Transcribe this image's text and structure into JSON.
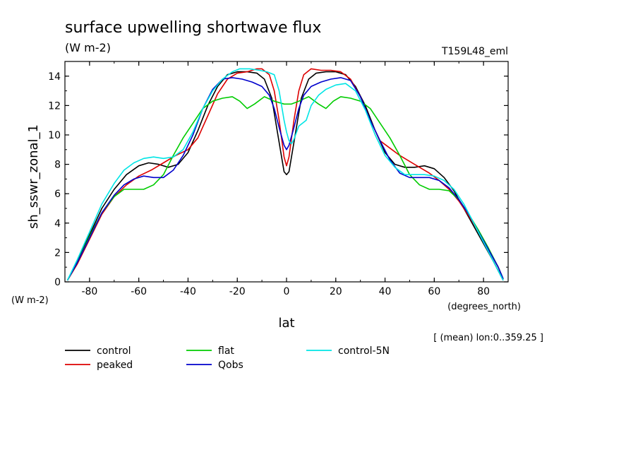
{
  "chart_data": {
    "type": "line",
    "title": "surface upwelling shortwave flux",
    "subtitle": "(W m-2)",
    "experiment_label": "T159L48_eml",
    "ylabel": "sh_sswr_zonal_1",
    "yunits": "(W m-2)",
    "xlabel": "lat",
    "xunits": "(degrees_north)",
    "note": "[ (mean) lon:0..359.25 ]",
    "xlim": [
      -90,
      90
    ],
    "ylim": [
      0,
      15
    ],
    "xticks": [
      -80,
      -60,
      -40,
      -20,
      0,
      20,
      40,
      60,
      80
    ],
    "yticks": [
      0,
      2,
      4,
      6,
      8,
      10,
      12,
      14
    ],
    "grid": false,
    "legend_position": "bottom",
    "series": [
      {
        "name": "control",
        "color": "#000000",
        "points": [
          [
            -89,
            0.1
          ],
          [
            -85,
            1.4
          ],
          [
            -80,
            3.2
          ],
          [
            -75,
            5.0
          ],
          [
            -70,
            6.3
          ],
          [
            -65,
            7.3
          ],
          [
            -60,
            7.9
          ],
          [
            -56,
            8.1
          ],
          [
            -52,
            8.0
          ],
          [
            -48,
            7.8
          ],
          [
            -44,
            8.0
          ],
          [
            -40,
            8.8
          ],
          [
            -36,
            10.3
          ],
          [
            -32,
            12.0
          ],
          [
            -28,
            13.3
          ],
          [
            -24,
            14.1
          ],
          [
            -20,
            14.3
          ],
          [
            -16,
            14.3
          ],
          [
            -12,
            14.2
          ],
          [
            -9,
            13.8
          ],
          [
            -6,
            12.5
          ],
          [
            -4,
            10.5
          ],
          [
            -2,
            8.5
          ],
          [
            -1,
            7.5
          ],
          [
            0,
            7.3
          ],
          [
            1,
            7.5
          ],
          [
            2,
            8.5
          ],
          [
            4,
            10.5
          ],
          [
            6,
            12.5
          ],
          [
            9,
            13.8
          ],
          [
            12,
            14.2
          ],
          [
            16,
            14.3
          ],
          [
            20,
            14.3
          ],
          [
            24,
            14.1
          ],
          [
            28,
            13.3
          ],
          [
            32,
            12.0
          ],
          [
            36,
            10.3
          ],
          [
            40,
            8.8
          ],
          [
            44,
            8.0
          ],
          [
            48,
            7.8
          ],
          [
            52,
            7.8
          ],
          [
            56,
            7.9
          ],
          [
            60,
            7.7
          ],
          [
            64,
            7.1
          ],
          [
            68,
            6.2
          ],
          [
            72,
            5.0
          ],
          [
            76,
            3.8
          ],
          [
            80,
            2.6
          ],
          [
            84,
            1.4
          ],
          [
            88,
            0.1
          ]
        ]
      },
      {
        "name": "peaked",
        "color": "#dd0000",
        "points": [
          [
            -89,
            0.1
          ],
          [
            -85,
            1.2
          ],
          [
            -80,
            2.9
          ],
          [
            -75,
            4.6
          ],
          [
            -70,
            5.8
          ],
          [
            -65,
            6.6
          ],
          [
            -60,
            7.2
          ],
          [
            -55,
            7.6
          ],
          [
            -50,
            8.1
          ],
          [
            -45,
            8.6
          ],
          [
            -40,
            9.0
          ],
          [
            -36,
            9.8
          ],
          [
            -32,
            11.3
          ],
          [
            -28,
            12.8
          ],
          [
            -24,
            13.8
          ],
          [
            -20,
            14.2
          ],
          [
            -16,
            14.3
          ],
          [
            -12,
            14.5
          ],
          [
            -10,
            14.5
          ],
          [
            -7,
            14.1
          ],
          [
            -5,
            13.0
          ],
          [
            -3,
            11.0
          ],
          [
            -1,
            8.5
          ],
          [
            0,
            7.9
          ],
          [
            1,
            8.5
          ],
          [
            3,
            11.0
          ],
          [
            5,
            13.0
          ],
          [
            7,
            14.1
          ],
          [
            10,
            14.5
          ],
          [
            14,
            14.4
          ],
          [
            18,
            14.4
          ],
          [
            22,
            14.3
          ],
          [
            26,
            13.8
          ],
          [
            30,
            12.6
          ],
          [
            34,
            11.0
          ],
          [
            38,
            9.6
          ],
          [
            42,
            9.1
          ],
          [
            46,
            8.6
          ],
          [
            50,
            8.2
          ],
          [
            54,
            7.8
          ],
          [
            58,
            7.4
          ],
          [
            62,
            6.9
          ],
          [
            66,
            6.3
          ],
          [
            70,
            5.5
          ],
          [
            74,
            4.5
          ],
          [
            78,
            3.4
          ],
          [
            82,
            2.2
          ],
          [
            86,
            1.0
          ],
          [
            88,
            0.2
          ]
        ]
      },
      {
        "name": "flat",
        "color": "#00cc00",
        "points": [
          [
            -89,
            0.1
          ],
          [
            -85,
            1.3
          ],
          [
            -80,
            3.1
          ],
          [
            -75,
            4.7
          ],
          [
            -70,
            5.8
          ],
          [
            -66,
            6.3
          ],
          [
            -62,
            6.3
          ],
          [
            -58,
            6.3
          ],
          [
            -54,
            6.6
          ],
          [
            -50,
            7.3
          ],
          [
            -46,
            8.6
          ],
          [
            -42,
            9.8
          ],
          [
            -38,
            10.8
          ],
          [
            -34,
            11.8
          ],
          [
            -30,
            12.3
          ],
          [
            -26,
            12.5
          ],
          [
            -22,
            12.6
          ],
          [
            -19,
            12.3
          ],
          [
            -16,
            11.8
          ],
          [
            -13,
            12.1
          ],
          [
            -9,
            12.6
          ],
          [
            -5,
            12.3
          ],
          [
            -1,
            12.1
          ],
          [
            2,
            12.1
          ],
          [
            5,
            12.3
          ],
          [
            9,
            12.6
          ],
          [
            13,
            12.1
          ],
          [
            16,
            11.8
          ],
          [
            19,
            12.3
          ],
          [
            22,
            12.6
          ],
          [
            26,
            12.5
          ],
          [
            30,
            12.3
          ],
          [
            34,
            11.8
          ],
          [
            38,
            10.8
          ],
          [
            42,
            9.8
          ],
          [
            46,
            8.6
          ],
          [
            50,
            7.3
          ],
          [
            54,
            6.6
          ],
          [
            58,
            6.3
          ],
          [
            62,
            6.3
          ],
          [
            66,
            6.2
          ],
          [
            70,
            5.6
          ],
          [
            74,
            4.6
          ],
          [
            78,
            3.5
          ],
          [
            82,
            2.3
          ],
          [
            86,
            1.0
          ],
          [
            88,
            0.2
          ]
        ]
      },
      {
        "name": "Qobs",
        "color": "#0000cc",
        "points": [
          [
            -89,
            0.1
          ],
          [
            -85,
            1.3
          ],
          [
            -80,
            3.0
          ],
          [
            -75,
            4.7
          ],
          [
            -70,
            5.9
          ],
          [
            -66,
            6.6
          ],
          [
            -62,
            7.0
          ],
          [
            -58,
            7.2
          ],
          [
            -54,
            7.1
          ],
          [
            -50,
            7.1
          ],
          [
            -46,
            7.6
          ],
          [
            -42,
            8.6
          ],
          [
            -38,
            10.0
          ],
          [
            -34,
            11.8
          ],
          [
            -30,
            13.1
          ],
          [
            -26,
            13.8
          ],
          [
            -22,
            13.9
          ],
          [
            -18,
            13.8
          ],
          [
            -14,
            13.6
          ],
          [
            -10,
            13.3
          ],
          [
            -7,
            12.7
          ],
          [
            -5,
            11.8
          ],
          [
            -3,
            10.5
          ],
          [
            -1,
            9.3
          ],
          [
            0,
            9.0
          ],
          [
            1,
            9.3
          ],
          [
            3,
            10.5
          ],
          [
            5,
            11.8
          ],
          [
            7,
            12.7
          ],
          [
            10,
            13.3
          ],
          [
            14,
            13.6
          ],
          [
            18,
            13.8
          ],
          [
            22,
            13.9
          ],
          [
            26,
            13.7
          ],
          [
            30,
            12.6
          ],
          [
            34,
            11.0
          ],
          [
            38,
            9.6
          ],
          [
            42,
            8.3
          ],
          [
            46,
            7.4
          ],
          [
            50,
            7.1
          ],
          [
            54,
            7.1
          ],
          [
            58,
            7.1
          ],
          [
            62,
            6.9
          ],
          [
            66,
            6.4
          ],
          [
            70,
            5.6
          ],
          [
            74,
            4.6
          ],
          [
            78,
            3.4
          ],
          [
            82,
            2.2
          ],
          [
            86,
            1.0
          ],
          [
            88,
            0.2
          ]
        ]
      },
      {
        "name": "control-5N",
        "color": "#00e5e5",
        "points": [
          [
            -89,
            0.1
          ],
          [
            -85,
            1.5
          ],
          [
            -80,
            3.4
          ],
          [
            -75,
            5.3
          ],
          [
            -70,
            6.7
          ],
          [
            -66,
            7.6
          ],
          [
            -62,
            8.1
          ],
          [
            -58,
            8.4
          ],
          [
            -54,
            8.5
          ],
          [
            -50,
            8.4
          ],
          [
            -46,
            8.5
          ],
          [
            -42,
            9.0
          ],
          [
            -38,
            10.2
          ],
          [
            -34,
            11.8
          ],
          [
            -30,
            13.0
          ],
          [
            -26,
            13.8
          ],
          [
            -22,
            14.3
          ],
          [
            -19,
            14.5
          ],
          [
            -15,
            14.5
          ],
          [
            -11,
            14.4
          ],
          [
            -8,
            14.3
          ],
          [
            -5,
            14.1
          ],
          [
            -3,
            13.0
          ],
          [
            -1,
            11.0
          ],
          [
            0,
            10.2
          ],
          [
            1,
            9.6
          ],
          [
            2,
            9.4
          ],
          [
            3,
            9.7
          ],
          [
            5,
            10.6
          ],
          [
            8,
            11.0
          ],
          [
            10,
            12.0
          ],
          [
            13,
            12.7
          ],
          [
            16,
            13.1
          ],
          [
            20,
            13.4
          ],
          [
            24,
            13.5
          ],
          [
            28,
            13.0
          ],
          [
            32,
            11.7
          ],
          [
            36,
            10.0
          ],
          [
            40,
            8.6
          ],
          [
            44,
            7.8
          ],
          [
            48,
            7.3
          ],
          [
            52,
            7.3
          ],
          [
            56,
            7.3
          ],
          [
            60,
            7.2
          ],
          [
            64,
            6.9
          ],
          [
            68,
            6.3
          ],
          [
            72,
            5.3
          ],
          [
            76,
            4.0
          ],
          [
            80,
            2.7
          ],
          [
            84,
            1.4
          ],
          [
            88,
            0.1
          ]
        ]
      }
    ]
  }
}
